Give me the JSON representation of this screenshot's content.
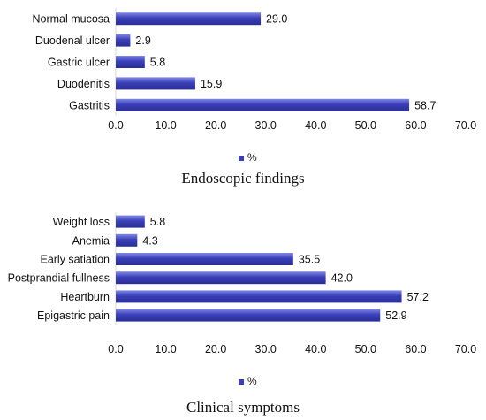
{
  "bar_color": "#3a3fb8",
  "bar_highlight": "#7f88e6",
  "chart_data": [
    {
      "type": "bar",
      "orientation": "horizontal",
      "categories": [
        "Normal mucosa",
        "Duodenal ulcer",
        "Gastric ulcer",
        "Duodenitis",
        "Gastritis"
      ],
      "series": [
        {
          "name": "%",
          "values": [
            29.0,
            2.9,
            5.8,
            15.9,
            58.7
          ]
        }
      ],
      "value_labels": [
        "29.0",
        "2.9",
        "5.8",
        "15.9",
        "58.7"
      ],
      "xlim": [
        0,
        70
      ],
      "xticks": [
        "0.0",
        "10.0",
        "20.0",
        "30.0",
        "40.0",
        "50.0",
        "60.0",
        "70.0"
      ],
      "legend": "bottom",
      "caption": "Endoscopic findings"
    },
    {
      "type": "bar",
      "orientation": "horizontal",
      "categories": [
        "Weight loss",
        "Anemia",
        "Early satiation",
        "Postprandial fullness",
        "Heartburn",
        "Epigastric pain"
      ],
      "series": [
        {
          "name": "%",
          "values": [
            5.8,
            4.3,
            35.5,
            42.0,
            57.2,
            52.9
          ]
        }
      ],
      "value_labels": [
        "5.8",
        "4.3",
        "35.5",
        "42.0",
        "57.2",
        "52.9"
      ],
      "xlim": [
        0,
        70
      ],
      "xticks": [
        "0.0",
        "10.0",
        "20.0",
        "30.0",
        "40.0",
        "50.0",
        "60.0",
        "70.0"
      ],
      "legend": "bottom",
      "caption": "Clinical symptoms"
    }
  ]
}
